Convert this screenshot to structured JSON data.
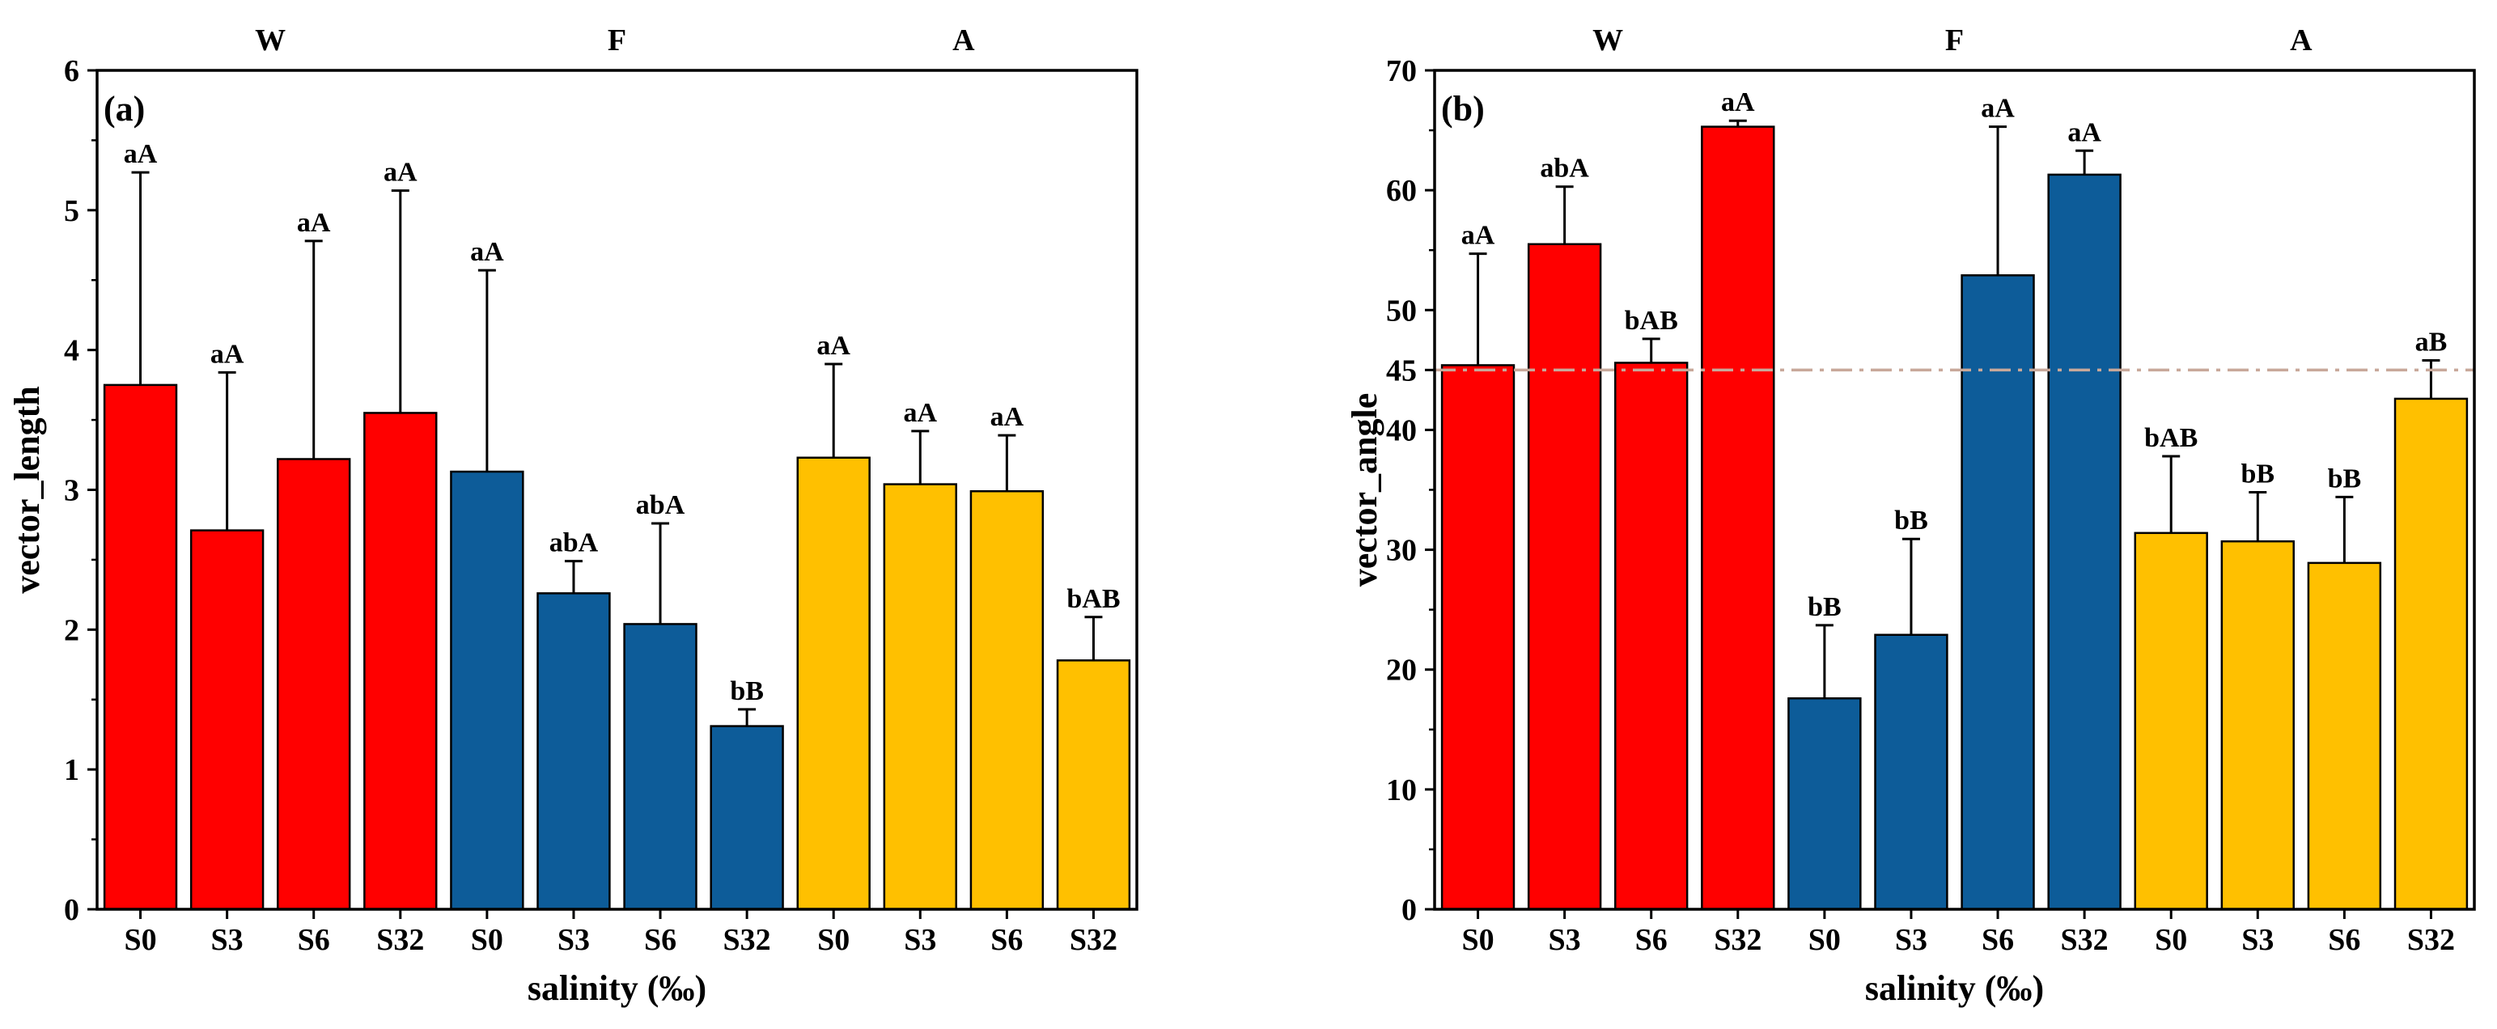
{
  "chart_data": [
    {
      "type": "bar",
      "panel_label": "(a)",
      "title": "",
      "xlabel": "salinity (‰)",
      "ylabel": "vector_length",
      "ylim": [
        0,
        6
      ],
      "yticks": [
        0,
        1,
        2,
        3,
        4,
        5,
        6
      ],
      "groups": [
        {
          "name": "W",
          "color": "#FF0000",
          "categories": [
            "S0",
            "S3",
            "S6",
            "S32"
          ],
          "values": [
            3.75,
            2.71,
            3.22,
            3.55
          ],
          "errors": [
            1.52,
            1.13,
            1.56,
            1.59
          ],
          "labels": [
            "aA",
            "aA",
            "aA",
            "aA"
          ]
        },
        {
          "name": "F",
          "color": "#0D5C99",
          "categories": [
            "S0",
            "S3",
            "S6",
            "S32"
          ],
          "values": [
            3.13,
            2.26,
            2.04,
            1.31
          ],
          "errors": [
            1.44,
            0.23,
            0.72,
            0.12
          ],
          "labels": [
            "aA",
            "abA",
            "abA",
            "bB"
          ]
        },
        {
          "name": "A",
          "color": "#FFC000",
          "categories": [
            "S0",
            "S3",
            "S6",
            "S32"
          ],
          "values": [
            3.23,
            3.04,
            2.99,
            1.78
          ],
          "errors": [
            0.67,
            0.38,
            0.4,
            0.31
          ],
          "labels": [
            "aA",
            "aA",
            "aA",
            "bAB"
          ]
        }
      ]
    },
    {
      "type": "bar",
      "panel_label": "(b)",
      "title": "",
      "xlabel": "salinity (‰)",
      "ylabel": "vector_angle",
      "ylim": [
        0,
        70
      ],
      "yticks": [
        0,
        10,
        20,
        30,
        40,
        45,
        50,
        60,
        70
      ],
      "reference_line": {
        "y": 45,
        "color": "#C8A89A",
        "style": "dash-dot"
      },
      "groups": [
        {
          "name": "W",
          "color": "#FF0000",
          "categories": [
            "S0",
            "S3",
            "S6",
            "S32"
          ],
          "values": [
            45.4,
            55.5,
            45.6,
            65.3
          ],
          "errors": [
            9.3,
            4.8,
            2.0,
            0.5
          ],
          "labels": [
            "aA",
            "abA",
            "bAB",
            "aA"
          ]
        },
        {
          "name": "F",
          "color": "#0D5C99",
          "categories": [
            "S0",
            "S3",
            "S6",
            "S32"
          ],
          "values": [
            17.6,
            22.9,
            52.9,
            61.3
          ],
          "errors": [
            6.1,
            8.0,
            12.4,
            2.0
          ],
          "labels": [
            "bB",
            "bB",
            "aA",
            "aA"
          ]
        },
        {
          "name": "A",
          "color": "#FFC000",
          "categories": [
            "S0",
            "S3",
            "S6",
            "S32"
          ],
          "values": [
            31.4,
            30.7,
            28.9,
            42.6
          ],
          "errors": [
            6.4,
            4.1,
            5.5,
            3.2
          ],
          "labels": [
            "bAB",
            "bB",
            "bB",
            "aB"
          ]
        }
      ]
    }
  ]
}
